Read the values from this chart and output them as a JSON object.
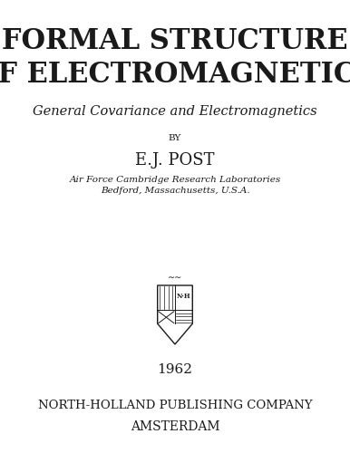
{
  "background_color": "#ffffff",
  "title_line1": "FORMAL STRUCTURE",
  "title_line2": "OF ELECTROMAGNETICS",
  "subtitle": "General Covariance and Electromagnetics",
  "by_text": "BY",
  "author": "E.J. POST",
  "affiliation1": "Air Force Cambridge Research Laboratories",
  "affiliation2": "Bedford, Massachusetts, U.S.A.",
  "year": "1962",
  "publisher": "NORTH-HOLLAND PUBLISHING COMPANY",
  "city": "AMSTERDAM",
  "title_fontsize": 22,
  "subtitle_fontsize": 10.5,
  "by_fontsize": 7.5,
  "author_fontsize": 13,
  "affil_fontsize": 7.5,
  "year_fontsize": 11,
  "publisher_fontsize": 9.5,
  "city_fontsize": 10,
  "text_color": "#1a1a1a"
}
